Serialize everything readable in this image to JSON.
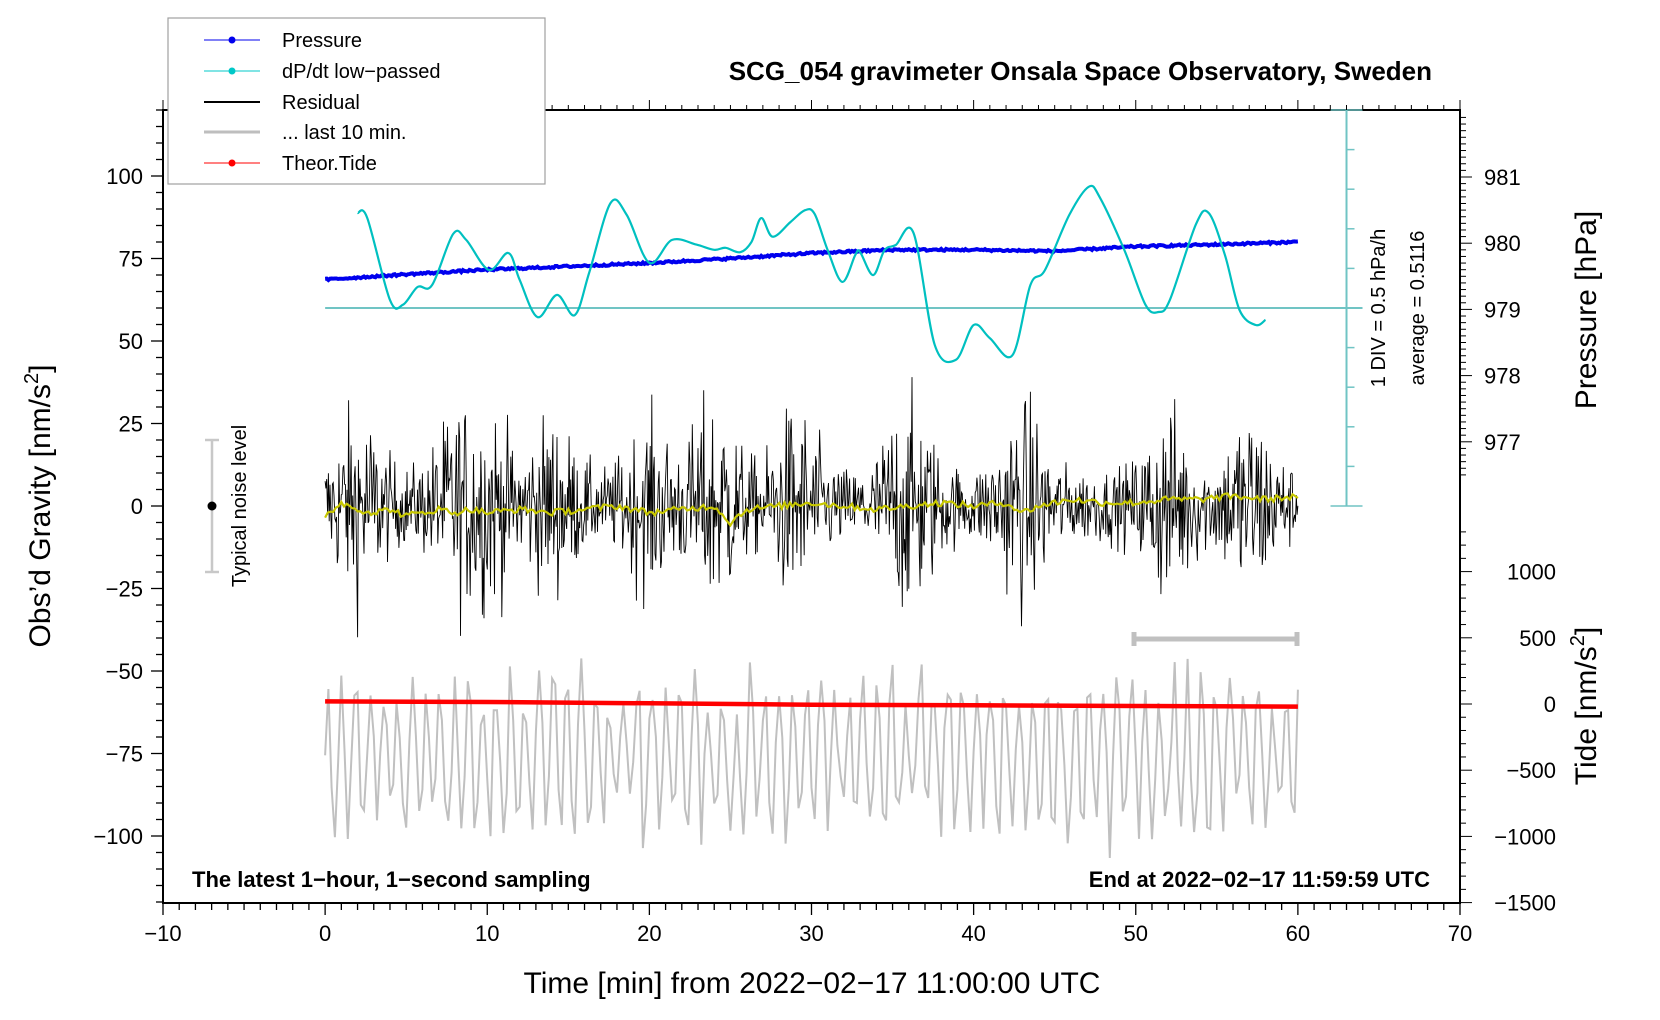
{
  "chart_data": {
    "type": "line",
    "title": "SCG_054 gravimeter Onsala Space Observatory, Sweden",
    "xlabel": "Time [min] from 2022−02−17 11:00:00 UTC",
    "ylabel_left": "Obs’d Gravity [nm/s²]",
    "ylabel_left_parts": {
      "main": "Obs’d Gravity [nm/s",
      "sup": "2",
      "end": "]"
    },
    "ylabel_right_pressure": "Pressure [hPa]",
    "ylabel_right_tide": "Tide [nm/s²]",
    "ylabel_right_tide_parts": {
      "main": "Tide [nm/s",
      "sup": "2",
      "end": "]"
    },
    "xlim": [
      -10,
      70
    ],
    "x_ticks": [
      -10,
      0,
      10,
      20,
      30,
      40,
      50,
      60,
      70
    ],
    "x_tick_labels": [
      "−10",
      "0",
      "10",
      "20",
      "30",
      "40",
      "50",
      "60",
      "70"
    ],
    "ylim_left": [
      -120,
      120
    ],
    "y_ticks_left": [
      100,
      75,
      50,
      25,
      0,
      -25,
      -50,
      -75,
      -100
    ],
    "y_tick_labels_left": [
      "100",
      "75",
      "50",
      "25",
      "0",
      "−25",
      "−50",
      "−75",
      "−100"
    ],
    "pressure_ticks": [
      981,
      980,
      979,
      978,
      977
    ],
    "pressure_tick_labels": [
      "981",
      "980",
      "979",
      "978",
      "977"
    ],
    "tide_ticks": [
      1000,
      500,
      0,
      -500,
      -1000,
      -1500
    ],
    "tide_tick_labels": [
      "1000",
      "500",
      "0",
      "−500",
      "−1000",
      "−1500"
    ],
    "grid": false,
    "legend_position": "top-left",
    "legend": [
      {
        "label": "Pressure",
        "color": "#0000ee",
        "marker": "dot"
      },
      {
        "label": "dP/dt low−passed",
        "color": "#00c8c8",
        "marker": "dot"
      },
      {
        "label": "Residual",
        "color": "#000000",
        "marker": "none"
      },
      {
        "label": "... last 10 min.",
        "color": "#bebebe",
        "marker": "none"
      },
      {
        "label": "Theor.Tide",
        "color": "#ff0000",
        "marker": "dot"
      }
    ],
    "annotations": {
      "bottom_left": "The latest 1−hour, 1−second sampling",
      "bottom_right": "End at 2022−02−17 11:59:59 UTC",
      "noise_label": "Typical noise level",
      "dpdt_scale": "1 DIV = 0.5 hPa/h",
      "dpdt_average": "average = 0.5116"
    },
    "noise_bar": {
      "x_min": -7,
      "center": 0,
      "half_range": 20
    },
    "last10_bar": {
      "from_min": 50,
      "to_min": 60
    },
    "dpdt_scale_bar": {
      "x_min": 63,
      "div_hpa_per_h": 0.5,
      "divisions_each_side": 5
    },
    "series": [
      {
        "name": "Pressure",
        "axis": "pressure_hPa",
        "color": "#0000ee",
        "x": [
          0,
          5,
          10,
          15,
          20,
          25,
          30,
          35,
          40,
          45,
          50,
          55,
          60
        ],
        "values": [
          979.45,
          979.53,
          979.6,
          979.65,
          979.7,
          979.77,
          979.85,
          979.9,
          979.9,
          979.88,
          979.95,
          979.98,
          980.02
        ]
      },
      {
        "name": "dP/dt low-passed",
        "axis": "dpdt_hPa_per_h",
        "color": "#00c0c0",
        "baseline_hpa_per_h": 0.5116,
        "x": [
          2.0,
          2.6,
          4.0,
          4.8,
          5.7,
          6.6,
          7.9,
          8.7,
          10.1,
          11.3,
          12.0,
          13.1,
          14.3,
          15.4,
          16.3,
          17.6,
          18.6,
          20.0,
          21.4,
          22.9,
          24.0,
          24.7,
          25.6,
          26.3,
          26.9,
          27.6,
          28.7,
          29.6,
          30.2,
          31.0,
          31.9,
          32.7,
          33.0,
          33.8,
          34.5,
          35.2,
          36.3,
          37.6,
          38.9,
          40.0,
          41.0,
          42.4,
          43.5,
          44.4,
          45.9,
          47.1,
          47.8,
          49.3,
          50.6,
          51.4,
          52.1,
          53.7,
          54.5,
          55.5,
          56.4,
          57.4,
          58.0
        ],
        "values_div": [
          2.4,
          2.27,
          0.2,
          0.08,
          0.53,
          0.58,
          1.87,
          1.72,
          0.96,
          1.39,
          0.71,
          -0.23,
          0.33,
          -0.18,
          0.91,
          2.65,
          2.35,
          1.14,
          1.72,
          1.6,
          1.47,
          1.52,
          1.41,
          1.67,
          2.27,
          1.8,
          2.17,
          2.47,
          2.37,
          1.46,
          0.66,
          1.34,
          1.41,
          0.83,
          1.46,
          1.59,
          1.89,
          -0.93,
          -1.31,
          -0.43,
          -0.76,
          -1.19,
          0.58,
          0.96,
          2.35,
          3.06,
          2.78,
          1.46,
          0.08,
          -0.1,
          0.2,
          2.1,
          2.4,
          1.34,
          -0.05,
          -0.43,
          -0.3
        ]
      },
      {
        "name": "Residual",
        "axis": "gravity_nm_s2",
        "color": "#000000",
        "x_range": [
          0,
          60
        ],
        "sampling_s": 1,
        "typical_envelope": [
          -45,
          48
        ]
      },
      {
        "name": "Residual smoothed",
        "axis": "gravity_nm_s2",
        "color": "#c8c800",
        "x": [
          0,
          1,
          2,
          3,
          4,
          5,
          6,
          7,
          8,
          9,
          10,
          12,
          14,
          16,
          18,
          20,
          22,
          24,
          25,
          26,
          28,
          30,
          32,
          34,
          36,
          38,
          40,
          42,
          43,
          44,
          46,
          48,
          50,
          52,
          54,
          56,
          58,
          60
        ],
        "values": [
          -3,
          1,
          -1,
          -2,
          -1,
          -3,
          -2,
          -1,
          -2,
          -1,
          -2,
          -1,
          -2,
          -1,
          0,
          -2,
          -1,
          0,
          -5,
          -1,
          0,
          1,
          0,
          -1,
          0,
          1,
          0,
          1,
          -2,
          0,
          2,
          1,
          1,
          2,
          2,
          3,
          2,
          3
        ]
      },
      {
        "name": "Residual last 10 min (expanded)",
        "axis": "gravity_nm_s2_offset",
        "color": "#bebebe",
        "x_range": [
          0,
          60
        ],
        "center_gravity": -75,
        "typical_envelope": [
          -105,
          -45
        ]
      },
      {
        "name": "Theor.Tide",
        "axis": "tide_nm_s2",
        "color": "#ff0000",
        "x": [
          0,
          10,
          20,
          30,
          40,
          50,
          60
        ],
        "values": [
          20,
          15,
          5,
          -5,
          -10,
          -15,
          -20
        ]
      }
    ]
  }
}
